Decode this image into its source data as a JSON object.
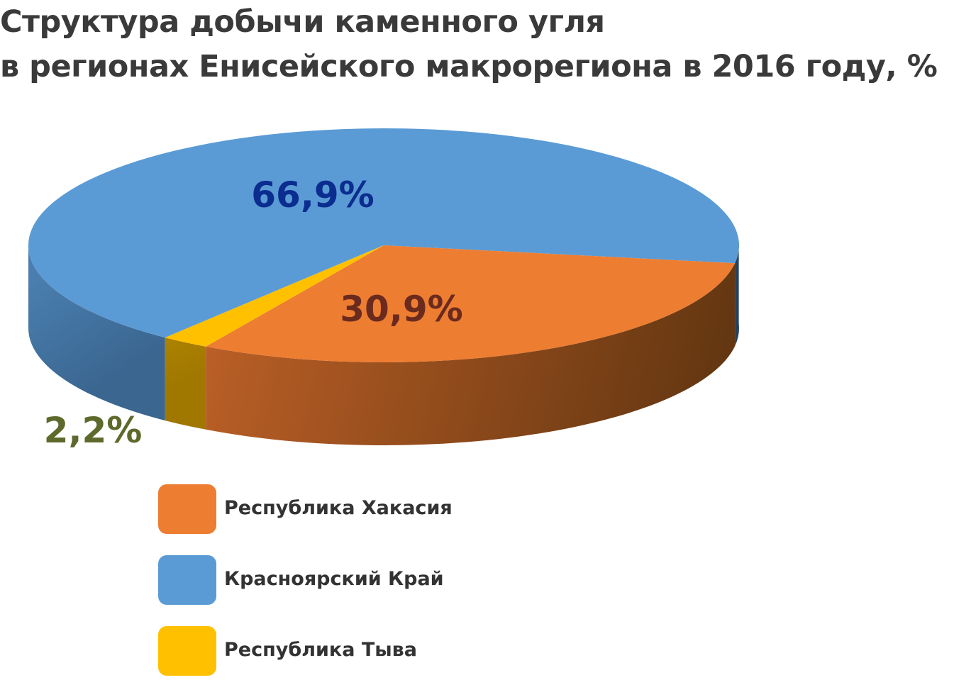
{
  "title_line1": "Структура добычи каменного угля",
  "title_line2": "в регионах Енисейского макрорегиона в 2016 году, %",
  "chart_data": {
    "type": "pie",
    "is_3d": true,
    "title": "Структура добычи каменного угля в регионах Енисейского макрорегиона в 2016 году, %",
    "slices": [
      {
        "name": "Республика Хакасия",
        "value": 30.9,
        "label": "30,9%",
        "color": "#ED7D31",
        "label_color": "#6B2A1E"
      },
      {
        "name": "Красноярский Край",
        "value": 66.9,
        "label": "66,9%",
        "color": "#5B9BD5",
        "label_color": "#0B2D8F"
      },
      {
        "name": "Республика Тыва",
        "value": 2.2,
        "label": "2,2%",
        "color": "#FFC000",
        "label_color": "#5E6A2C"
      }
    ],
    "legend_position": "bottom"
  }
}
